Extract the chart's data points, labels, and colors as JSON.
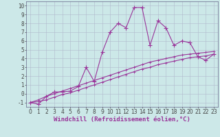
{
  "xlabel": "Windchill (Refroidissement éolien,°C)",
  "x": [
    0,
    1,
    2,
    3,
    4,
    5,
    6,
    7,
    8,
    9,
    10,
    11,
    12,
    13,
    14,
    15,
    16,
    17,
    18,
    19,
    20,
    21,
    22,
    23
  ],
  "main_y": [
    -1.0,
    -1.2,
    -0.3,
    0.2,
    0.2,
    0.3,
    0.8,
    3.0,
    1.4,
    4.7,
    7.0,
    8.0,
    7.5,
    9.8,
    9.8,
    5.5,
    8.3,
    7.5,
    5.5,
    6.0,
    5.8,
    4.2,
    3.8,
    4.5
  ],
  "line1_y": [
    -1.0,
    -0.9,
    -0.7,
    -0.4,
    -0.1,
    0.1,
    0.4,
    0.7,
    1.0,
    1.3,
    1.6,
    1.9,
    2.2,
    2.5,
    2.8,
    3.0,
    3.3,
    3.5,
    3.7,
    3.9,
    4.1,
    4.2,
    4.3,
    4.5
  ],
  "line2_y": [
    -1.0,
    -0.7,
    -0.3,
    0.0,
    0.3,
    0.6,
    0.9,
    1.2,
    1.5,
    1.8,
    2.1,
    2.4,
    2.7,
    3.0,
    3.3,
    3.6,
    3.8,
    4.0,
    4.2,
    4.4,
    4.5,
    4.6,
    4.7,
    4.8
  ],
  "ylim": [
    -1.5,
    10.5
  ],
  "xlim": [
    -0.5,
    23.5
  ],
  "bg_color": "#cce8e8",
  "grid_color": "#b0b8cc",
  "line_color": "#993399",
  "marker": "+",
  "marker_size": 4,
  "yticks": [
    -1,
    0,
    1,
    2,
    3,
    4,
    5,
    6,
    7,
    8,
    9,
    10
  ],
  "xticks": [
    0,
    1,
    2,
    3,
    4,
    5,
    6,
    7,
    8,
    9,
    10,
    11,
    12,
    13,
    14,
    15,
    16,
    17,
    18,
    19,
    20,
    21,
    22,
    23
  ],
  "tick_fontsize": 5.5,
  "xlabel_fontsize": 6.5
}
